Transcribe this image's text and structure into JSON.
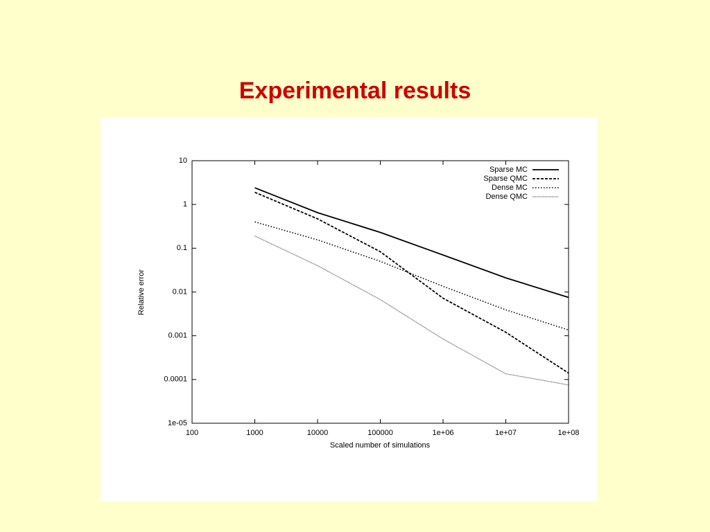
{
  "chart_data": {
    "type": "line",
    "title": "Experimental results",
    "xlabel": "Scaled number of simulations",
    "ylabel": "Relative error",
    "xscale": "log",
    "yscale": "log",
    "grid": false,
    "legend": "upper right",
    "x": [
      1000,
      10000,
      100000,
      1000000,
      10000000,
      100000000
    ],
    "series": [
      {
        "name": "Sparse MC",
        "color": "#000000",
        "line_style": "solid",
        "values": [
          2.4,
          0.65,
          0.23,
          0.07,
          0.021,
          0.0075
        ]
      },
      {
        "name": "Sparse QMC",
        "color": "#000000",
        "line_style": "dashed",
        "values": [
          1.9,
          0.47,
          0.083,
          0.0072,
          0.0012,
          0.00014
        ]
      },
      {
        "name": "Dense MC",
        "color": "#000000",
        "line_style": "dotted",
        "values": [
          0.4,
          0.155,
          0.05,
          0.0135,
          0.0039,
          0.00135
        ]
      },
      {
        "name": "Dense QMC",
        "color": "#555555",
        "line_style": "fine-dotted",
        "values": [
          0.19,
          0.04,
          0.0067,
          0.00084,
          0.000135,
          7.5e-05
        ]
      }
    ],
    "xlim": [
      100,
      100000000
    ],
    "xticks": [
      100,
      1000,
      10000,
      100000,
      {
        "value": 1000000,
        "label": "1e+06"
      },
      {
        "value": 10000000,
        "label": "1e+07"
      },
      {
        "value": 100000000,
        "label": "1e+08"
      }
    ],
    "ylim": [
      1e-05,
      10
    ],
    "yticks": [
      10,
      1,
      0.1,
      0.01,
      0.001,
      0.0001,
      {
        "value": 1e-05,
        "label": "1e-05"
      }
    ]
  }
}
